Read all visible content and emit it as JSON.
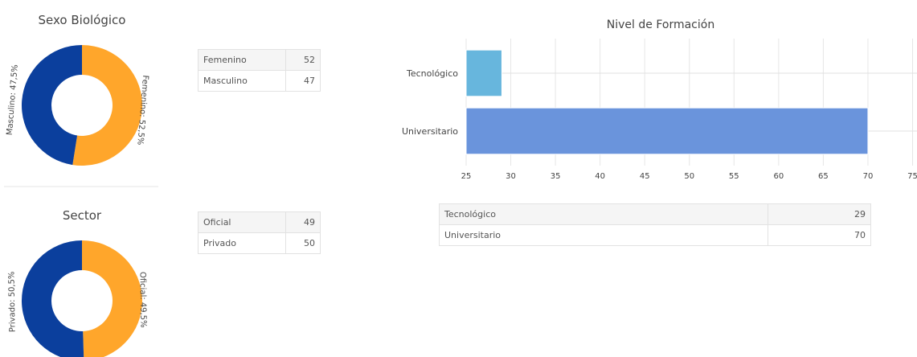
{
  "chart_data": [
    {
      "type": "donut",
      "title": "Sexo Biológico",
      "values": [
        52.5,
        47.5
      ],
      "value_labels": [
        "Femenino: 52,5%",
        "Masculino: 47,5%"
      ],
      "colors": [
        "#ffa62b",
        "#0b3f9d"
      ]
    },
    {
      "type": "donut",
      "title": "Sector",
      "values": [
        49.5,
        50.5
      ],
      "value_labels": [
        "Oficial: 49,5%",
        "Privado: 50,5%"
      ],
      "colors": [
        "#ffa62b",
        "#0b3f9d"
      ]
    },
    {
      "type": "bar",
      "orientation": "horizontal",
      "title": "Nivel de Formación",
      "categories": [
        "Tecnológico",
        "Universitario"
      ],
      "values": [
        29,
        70
      ],
      "colors": [
        "#67b6dd",
        "#6a94dc"
      ],
      "xlim": [
        25,
        75
      ],
      "xticks": [
        25,
        30,
        35,
        40,
        45,
        50,
        55,
        60,
        65,
        70,
        75
      ],
      "grid": true
    }
  ],
  "tables": [
    {
      "rows": [
        [
          "Femenino",
          52
        ],
        [
          "Masculino",
          47
        ]
      ]
    },
    {
      "rows": [
        [
          "Oficial",
          49
        ],
        [
          "Privado",
          50
        ]
      ]
    },
    {
      "rows": [
        [
          "Tecnológico",
          29
        ],
        [
          "Universitario",
          70
        ]
      ]
    }
  ]
}
